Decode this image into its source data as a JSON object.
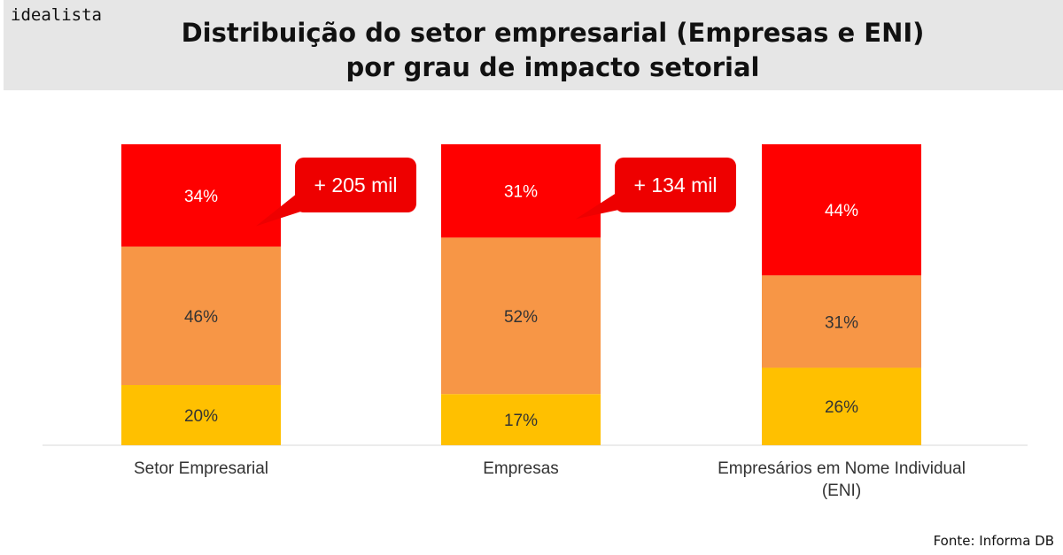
{
  "header": {
    "logo": "idealista",
    "title_line1": "Distribuição do setor empresarial (Empresas e ENI)",
    "title_line2": "por grau de impacto setorial"
  },
  "source": "Fonte: Informa DB",
  "colors": {
    "high": "#ff0000",
    "medium": "#f79646",
    "low": "#ffc000",
    "callout": "#ee0000"
  },
  "chart_data": {
    "type": "bar",
    "stacked": true,
    "percent": true,
    "categories": [
      [
        "Setor Empresarial"
      ],
      [
        "Empresas"
      ],
      [
        "Empresários em Nome Individual",
        "(ENI)"
      ]
    ],
    "series": [
      {
        "values": [
          20,
          17,
          26
        ],
        "labels": [
          "20%",
          "17%",
          "26%"
        ],
        "color": "#ffc000"
      },
      {
        "values": [
          46,
          52,
          31
        ],
        "labels": [
          "46%",
          "52%",
          "31%"
        ],
        "color": "#f79646"
      },
      {
        "values": [
          34,
          31,
          44
        ],
        "labels": [
          "34%",
          "31%",
          "44%"
        ],
        "color": "#ff0000"
      }
    ],
    "annotations": [
      {
        "text": "+ 205 mil",
        "bar": 0
      },
      {
        "text": "+ 134 mil",
        "bar": 1
      }
    ],
    "ylim": [
      0,
      100
    ],
    "grid": false,
    "legend": "none"
  }
}
